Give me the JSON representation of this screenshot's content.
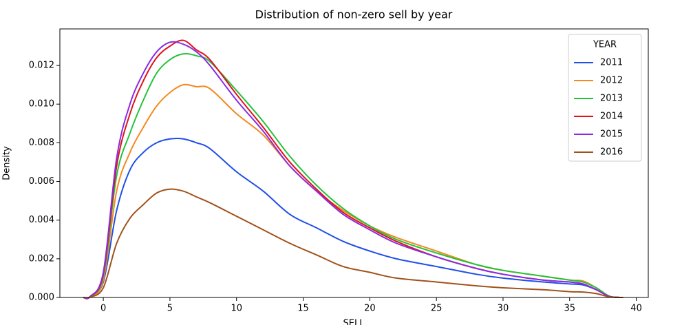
{
  "chart_data": {
    "type": "line",
    "title": "Distribution of non-zero sell by year",
    "x_label": "SELL",
    "y_label": "Density",
    "legend_title": "YEAR",
    "legend_position": "upper right",
    "grid": false,
    "x": [
      -1.5,
      -1,
      0,
      1,
      2,
      3,
      4,
      5,
      6,
      7,
      8,
      10,
      12,
      14,
      16,
      18,
      20,
      22,
      25,
      28,
      30,
      33,
      35,
      36,
      37,
      38,
      39
    ],
    "series": [
      {
        "name": "2011",
        "color": "#1f4fe8",
        "values": [
          0,
          3e-05,
          0.0008,
          0.0045,
          0.0066,
          0.0075,
          0.008,
          0.0082,
          0.0082,
          0.008,
          0.0077,
          0.0065,
          0.0055,
          0.0043,
          0.0036,
          0.0029,
          0.0024,
          0.002,
          0.0016,
          0.0012,
          0.001,
          0.0008,
          0.0007,
          0.00065,
          0.0004,
          5e-05,
          0
        ]
      },
      {
        "name": "2012",
        "color": "#f5881f",
        "values": [
          0,
          3e-05,
          0.0009,
          0.0055,
          0.0075,
          0.0088,
          0.0099,
          0.0106,
          0.011,
          0.0109,
          0.0108,
          0.0095,
          0.0084,
          0.0068,
          0.0055,
          0.0045,
          0.0037,
          0.0031,
          0.0024,
          0.0017,
          0.0014,
          0.0011,
          0.0009,
          0.00085,
          0.0005,
          6e-05,
          0
        ]
      },
      {
        "name": "2013",
        "color": "#22c33a",
        "values": [
          0,
          4e-05,
          0.0011,
          0.0063,
          0.0085,
          0.0102,
          0.0116,
          0.0123,
          0.0126,
          0.0125,
          0.0122,
          0.0107,
          0.0091,
          0.0073,
          0.0058,
          0.0046,
          0.0037,
          0.003,
          0.0023,
          0.0017,
          0.0014,
          0.0011,
          0.0009,
          0.0008,
          0.0005,
          6e-05,
          0
        ]
      },
      {
        "name": "2014",
        "color": "#e0111c",
        "values": [
          0,
          4e-05,
          0.0012,
          0.0068,
          0.0095,
          0.0112,
          0.0124,
          0.013,
          0.0133,
          0.0128,
          0.0123,
          0.0105,
          0.0088,
          0.007,
          0.0056,
          0.0044,
          0.0036,
          0.0029,
          0.0021,
          0.0015,
          0.0012,
          0.0009,
          0.0008,
          0.0007,
          0.0004,
          5e-05,
          0
        ]
      },
      {
        "name": "2015",
        "color": "#8b2be2",
        "values": [
          0,
          4e-05,
          0.0013,
          0.0072,
          0.01,
          0.0116,
          0.0127,
          0.0132,
          0.0131,
          0.0127,
          0.012,
          0.0102,
          0.0086,
          0.0068,
          0.0055,
          0.0043,
          0.0035,
          0.0028,
          0.0021,
          0.0015,
          0.0012,
          0.0009,
          0.0008,
          0.0007,
          0.0004,
          5e-05,
          0
        ]
      },
      {
        "name": "2016",
        "color": "#a0521a",
        "values": [
          0,
          2e-05,
          0.0005,
          0.0028,
          0.0041,
          0.0048,
          0.0054,
          0.0056,
          0.0055,
          0.0052,
          0.0049,
          0.0042,
          0.0035,
          0.0028,
          0.0022,
          0.0016,
          0.0013,
          0.001,
          0.0008,
          0.0006,
          0.0005,
          0.0004,
          0.0003,
          0.00028,
          0.0002,
          3e-05,
          0
        ]
      }
    ],
    "xlim": [
      -3.26,
      40.9
    ],
    "ylim": [
      0,
      0.01389
    ],
    "xticks": [
      0,
      5,
      10,
      15,
      20,
      25,
      30,
      35,
      40
    ],
    "yticks": [
      {
        "value": 0,
        "label": "0.000"
      },
      {
        "value": 0.002,
        "label": "0.002"
      },
      {
        "value": 0.004,
        "label": "0.004"
      },
      {
        "value": 0.006,
        "label": "0.006"
      },
      {
        "value": 0.008,
        "label": "0.008"
      },
      {
        "value": 0.01,
        "label": "0.010"
      },
      {
        "value": 0.012,
        "label": "0.012"
      }
    ]
  }
}
